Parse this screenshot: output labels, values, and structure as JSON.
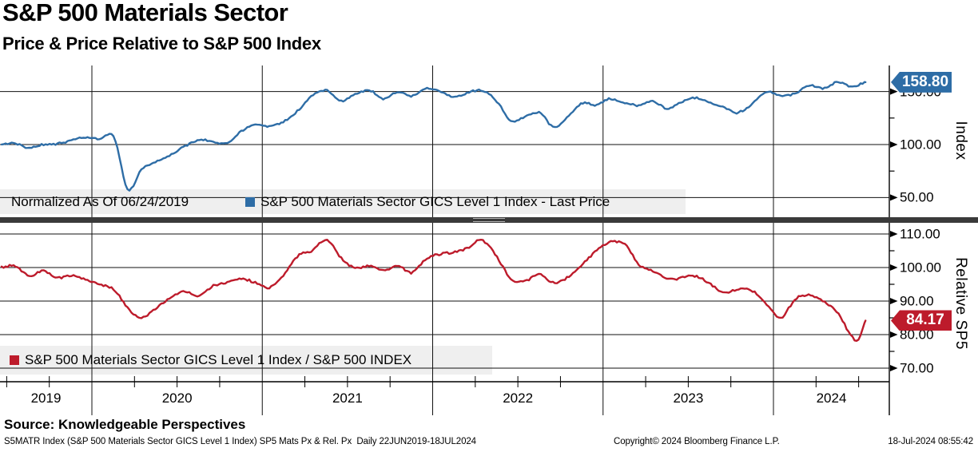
{
  "header": {
    "title": "S&P 500 Materials Sector",
    "subtitle": "Price & Price Relative to S&P 500 Index"
  },
  "colors": {
    "blue": "#2e6da6",
    "red": "#bd1b2b",
    "grid": "#111111",
    "divider": "#3a3a3a",
    "badge_text": "#ffffff"
  },
  "top_panel": {
    "axis_label": "Index",
    "badge": "158.80",
    "legend_prefix": "Normalized As Of 06/24/2019",
    "legend_series": "S&P 500 Materials Sector GICS Level 1 Index - Last Price"
  },
  "bottom_panel": {
    "axis_label": "Relative SP5",
    "badge": "84.17",
    "legend_series": "S&P 500 Materials Sector GICS Level 1 Index / S&P 500 INDEX"
  },
  "x_axis": {
    "year_labels": [
      "2019",
      "2020",
      "2021",
      "2022",
      "2023",
      "2024"
    ]
  },
  "footer": {
    "source": "Source: Knowledgeable Perspectives",
    "ticker_line": "S5MATR Index (S&P 500 Materials Sector GICS Level 1 Index) SP5 Mats Px & Rel. Px  Daily 22JUN2019-18JUL2024",
    "copyright": "Copyright© 2024 Bloomberg Finance L.P.",
    "timestamp": "18-Jul-2024 08:55:42"
  },
  "chart_data": [
    {
      "type": "line",
      "panel": "price",
      "title": "S&P 500 Materials Sector - Price, Normalized As Of 06/24/2019",
      "ylabel": "Index",
      "yticks": [
        150,
        100,
        50
      ],
      "ytick_labels": [
        "150.00",
        "100.00",
        "50.00"
      ],
      "yticks_minor": [
        125,
        75
      ],
      "ylim": [
        32,
        175
      ],
      "xlim": [
        2019.47,
        2024.7
      ],
      "xticks_years": [
        2020,
        2021,
        2022,
        2023,
        2024
      ],
      "grid": true,
      "legend_position": "bottom-left",
      "series": [
        {
          "name": "S&P 500 Materials Sector GICS Level 1 Index - Last Price",
          "color_key": "blue",
          "last_value": 158.8,
          "points": [
            [
              2019.47,
              100
            ],
            [
              2019.55,
              101
            ],
            [
              2019.63,
              96.5
            ],
            [
              2019.71,
              100
            ],
            [
              2019.79,
              100.5
            ],
            [
              2019.88,
              104
            ],
            [
              2019.96,
              106.5
            ],
            [
              2020.04,
              105
            ],
            [
              2020.13,
              107
            ],
            [
              2020.21,
              58
            ],
            [
              2020.29,
              76
            ],
            [
              2020.38,
              84
            ],
            [
              2020.46,
              90
            ],
            [
              2020.54,
              98
            ],
            [
              2020.63,
              104
            ],
            [
              2020.71,
              103
            ],
            [
              2020.79,
              101.5
            ],
            [
              2020.88,
              113
            ],
            [
              2020.96,
              119
            ],
            [
              2021.04,
              117
            ],
            [
              2021.13,
              122
            ],
            [
              2021.21,
              132
            ],
            [
              2021.29,
              146
            ],
            [
              2021.38,
              151
            ],
            [
              2021.46,
              141
            ],
            [
              2021.54,
              147
            ],
            [
              2021.63,
              151
            ],
            [
              2021.71,
              143
            ],
            [
              2021.79,
              149
            ],
            [
              2021.88,
              146
            ],
            [
              2021.96,
              153
            ],
            [
              2022.04,
              150
            ],
            [
              2022.13,
              145
            ],
            [
              2022.21,
              149
            ],
            [
              2022.29,
              151
            ],
            [
              2022.38,
              140
            ],
            [
              2022.46,
              122
            ],
            [
              2022.54,
              126
            ],
            [
              2022.63,
              130
            ],
            [
              2022.71,
              116
            ],
            [
              2022.79,
              126
            ],
            [
              2022.88,
              139
            ],
            [
              2022.96,
              137
            ],
            [
              2023.04,
              143
            ],
            [
              2023.13,
              139
            ],
            [
              2023.21,
              137
            ],
            [
              2023.29,
              141
            ],
            [
              2023.38,
              134
            ],
            [
              2023.46,
              140
            ],
            [
              2023.54,
              144
            ],
            [
              2023.63,
              139
            ],
            [
              2023.71,
              135
            ],
            [
              2023.79,
              130
            ],
            [
              2023.88,
              139
            ],
            [
              2023.96,
              150
            ],
            [
              2024.04,
              146
            ],
            [
              2024.13,
              148
            ],
            [
              2024.21,
              156
            ],
            [
              2024.29,
              153
            ],
            [
              2024.38,
              159
            ],
            [
              2024.46,
              154
            ],
            [
              2024.54,
              158.8
            ]
          ]
        }
      ]
    },
    {
      "type": "line",
      "panel": "relative",
      "title": "S&P 500 Materials Sector GICS Level 1 Index / S&P 500 INDEX",
      "ylabel": "Relative SP5",
      "yticks": [
        110,
        100,
        90,
        80,
        70
      ],
      "ytick_labels": [
        "110.00",
        "100.00",
        "90.00",
        "80.00",
        "70.00"
      ],
      "yticks_minor": [
        105,
        95,
        85,
        75
      ],
      "ylim": [
        66,
        113
      ],
      "xlim": [
        2019.47,
        2024.7
      ],
      "xticks_years": [
        2020,
        2021,
        2022,
        2023,
        2024
      ],
      "grid": true,
      "legend_position": "bottom-left",
      "series": [
        {
          "name": "S&P 500 Materials Sector GICS Level 1 Index / S&P 500 INDEX",
          "color_key": "red",
          "last_value": 84.17,
          "points": [
            [
              2019.47,
              100
            ],
            [
              2019.55,
              100.5
            ],
            [
              2019.63,
              97.5
            ],
            [
              2019.71,
              99
            ],
            [
              2019.79,
              97
            ],
            [
              2019.88,
              97.5
            ],
            [
              2019.96,
              96.5
            ],
            [
              2020.04,
              95
            ],
            [
              2020.13,
              93.5
            ],
            [
              2020.21,
              88
            ],
            [
              2020.29,
              85
            ],
            [
              2020.38,
              88
            ],
            [
              2020.46,
              91
            ],
            [
              2020.54,
              93
            ],
            [
              2020.63,
              91.5
            ],
            [
              2020.71,
              94.5
            ],
            [
              2020.79,
              95.5
            ],
            [
              2020.88,
              96.5
            ],
            [
              2020.96,
              95.5
            ],
            [
              2021.04,
              94
            ],
            [
              2021.13,
              98
            ],
            [
              2021.21,
              103.5
            ],
            [
              2021.29,
              105
            ],
            [
              2021.38,
              108.3
            ],
            [
              2021.46,
              103
            ],
            [
              2021.54,
              100
            ],
            [
              2021.63,
              100.5
            ],
            [
              2021.71,
              99
            ],
            [
              2021.79,
              100.5
            ],
            [
              2021.88,
              98.5
            ],
            [
              2021.96,
              102.5
            ],
            [
              2022.04,
              104
            ],
            [
              2022.13,
              104.5
            ],
            [
              2022.21,
              106
            ],
            [
              2022.29,
              108.2
            ],
            [
              2022.38,
              103
            ],
            [
              2022.46,
              96.5
            ],
            [
              2022.54,
              96
            ],
            [
              2022.63,
              98
            ],
            [
              2022.71,
              95.5
            ],
            [
              2022.79,
              97
            ],
            [
              2022.88,
              101
            ],
            [
              2022.96,
              105
            ],
            [
              2023.04,
              107.6
            ],
            [
              2023.13,
              106.8
            ],
            [
              2023.21,
              101
            ],
            [
              2023.29,
              99
            ],
            [
              2023.38,
              96.5
            ],
            [
              2023.46,
              97
            ],
            [
              2023.54,
              97.5
            ],
            [
              2023.63,
              95
            ],
            [
              2023.71,
              92.5
            ],
            [
              2023.79,
              93.5
            ],
            [
              2023.88,
              93
            ],
            [
              2023.96,
              89
            ],
            [
              2024.04,
              85
            ],
            [
              2024.13,
              90.5
            ],
            [
              2024.21,
              91.8
            ],
            [
              2024.29,
              90
            ],
            [
              2024.38,
              86.5
            ],
            [
              2024.46,
              79.5
            ],
            [
              2024.5,
              78.5
            ],
            [
              2024.54,
              84.17
            ]
          ]
        }
      ]
    }
  ]
}
